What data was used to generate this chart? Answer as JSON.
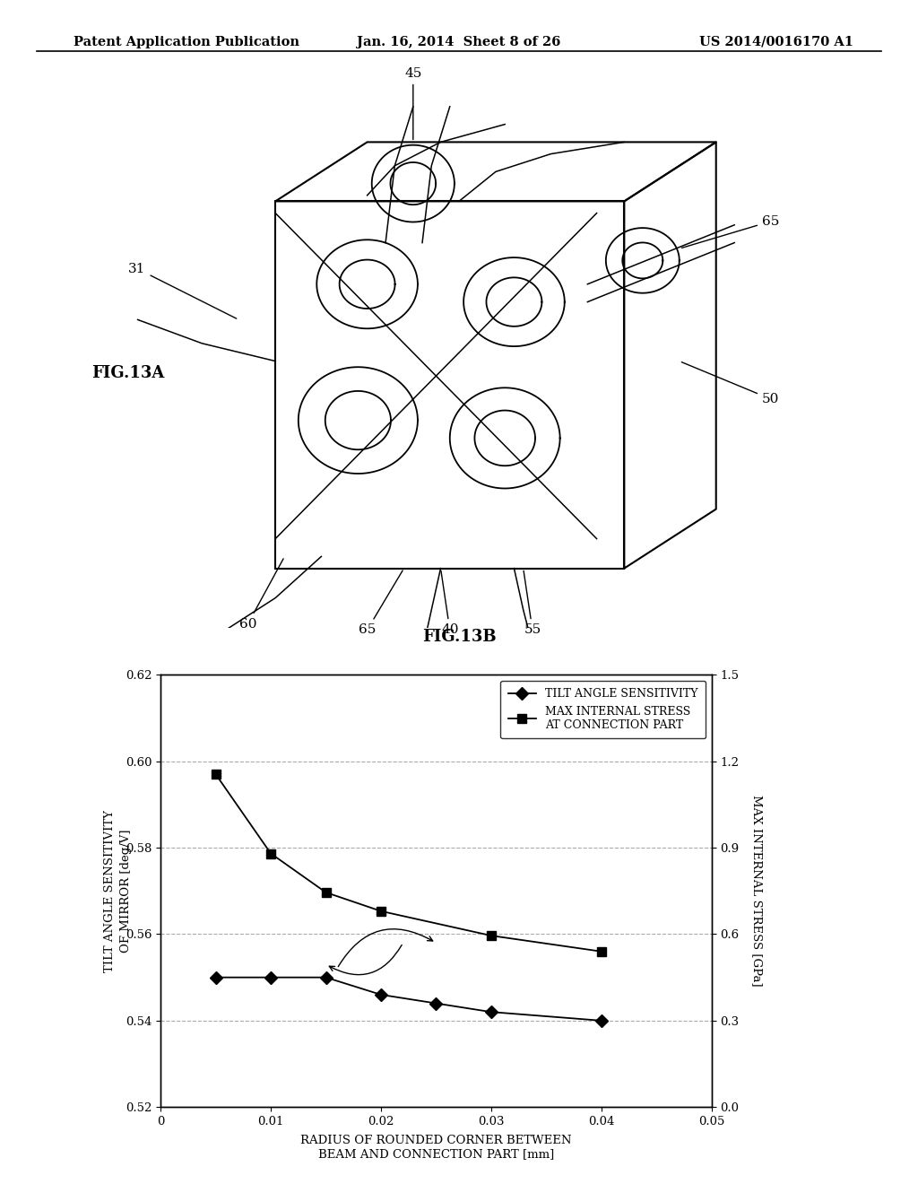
{
  "background_color": "#ffffff",
  "header_left": "Patent Application Publication",
  "header_center": "Jan. 16, 2014  Sheet 8 of 26",
  "header_right": "US 2014/0016170 A1",
  "fig13a_label": "FIG.13A",
  "fig13b_label": "FIG.13B",
  "tilt_x": [
    0.005,
    0.01,
    0.015,
    0.02,
    0.025,
    0.03,
    0.04
  ],
  "tilt_y": [
    0.55,
    0.55,
    0.55,
    0.546,
    0.544,
    0.542,
    0.54
  ],
  "stress_x": [
    0.005,
    0.01,
    0.015,
    0.02,
    0.03,
    0.04
  ],
  "stress_y": [
    1.155,
    0.88,
    0.745,
    0.68,
    0.595,
    0.54
  ],
  "xlim": [
    0,
    0.05
  ],
  "ylim_left": [
    0.52,
    0.62
  ],
  "ylim_right": [
    0.0,
    1.5
  ],
  "xlabel": "RADIUS OF ROUNDED CORNER BETWEEN\nBEAM AND CONNECTION PART [mm]",
  "ylabel_left": "TILT ANGLE SENSITIVITY\nOF MIRROR [deg/V]",
  "ylabel_right": "MAX INTERNAL STRESS [GPa]",
  "xticks": [
    0,
    0.01,
    0.02,
    0.03,
    0.04,
    0.05
  ],
  "yticks_left": [
    0.52,
    0.54,
    0.56,
    0.58,
    0.6,
    0.62
  ],
  "yticks_right": [
    0.0,
    0.3,
    0.6,
    0.9,
    1.2,
    1.5
  ],
  "legend_tilt": "TILT ANGLE SENSITIVITY",
  "legend_stress": "MAX INTERNAL STRESS\nAT CONNECTION PART",
  "line_color": "#000000",
  "grid_color": "#aaaaaa"
}
